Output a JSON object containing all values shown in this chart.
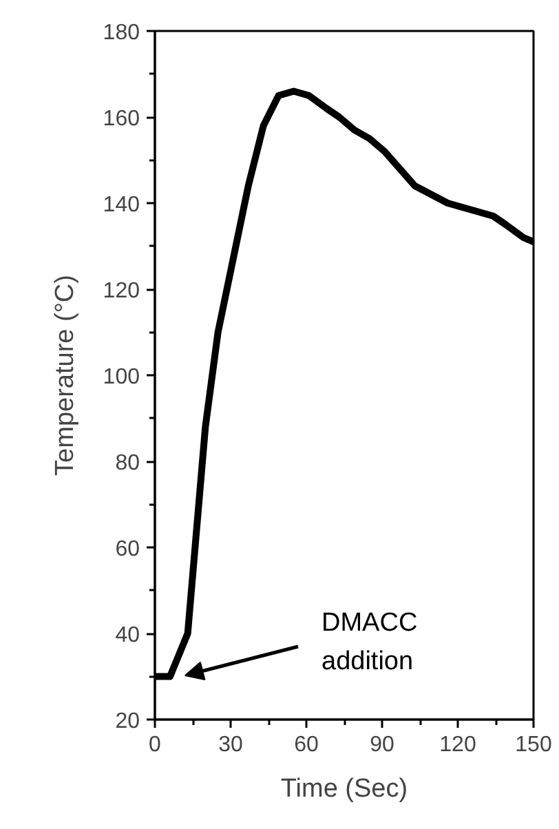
{
  "chart_data": {
    "type": "line",
    "xlabel": "Time (Sec)",
    "ylabel": "Temperature (°C)",
    "x": [
      0,
      6,
      13,
      20,
      25,
      31,
      37,
      43,
      49,
      55,
      61,
      68,
      73,
      79,
      85,
      91,
      103,
      116,
      134,
      139,
      146,
      150
    ],
    "series": [
      {
        "color": "#000000",
        "values": [
          30,
          30,
          40,
          88,
          110,
          127,
          144,
          158,
          165,
          166,
          165,
          162,
          160,
          157,
          155,
          152,
          144,
          140,
          137,
          135,
          132,
          131
        ]
      }
    ],
    "xlim": [
      0,
      150
    ],
    "ylim": [
      20,
      180
    ],
    "xticks": [
      0,
      30,
      60,
      90,
      120,
      150
    ],
    "yticks": [
      20,
      40,
      60,
      80,
      100,
      120,
      140,
      160,
      180
    ],
    "grid": false,
    "marker": "none",
    "line_style": "solid",
    "annotations": [
      "DMACC\naddition"
    ]
  }
}
